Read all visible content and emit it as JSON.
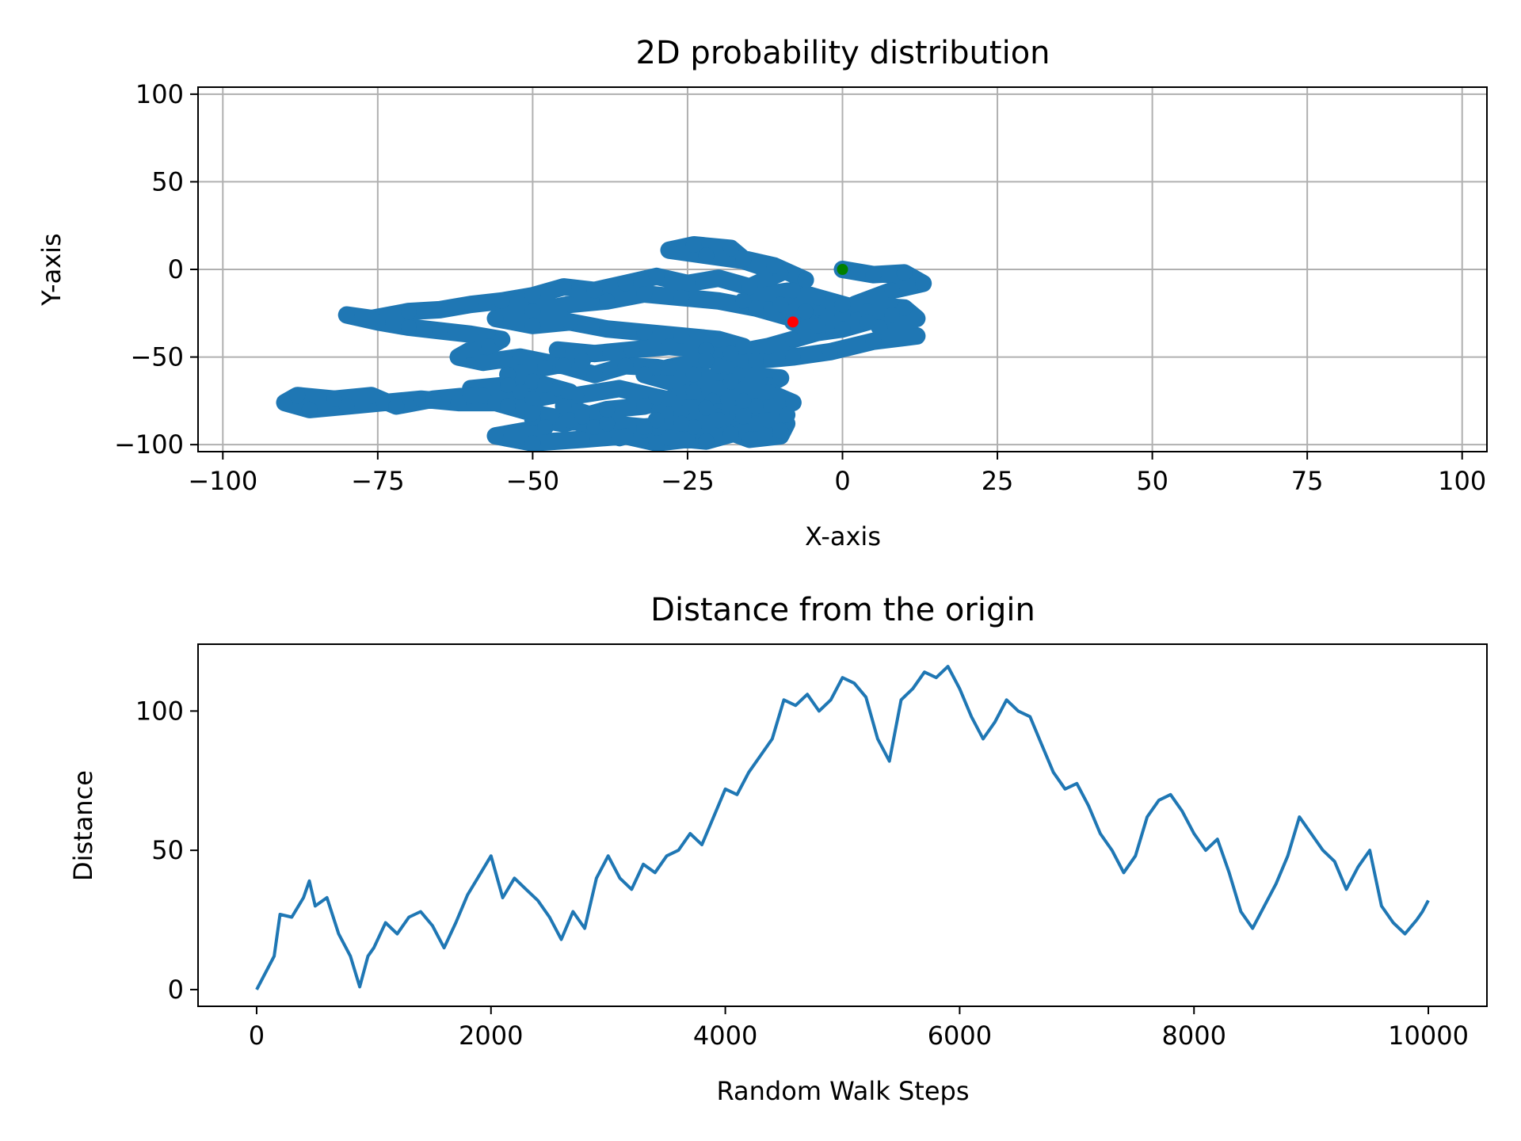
{
  "chart_data": [
    {
      "type": "scatter",
      "title": "2D probability distribution",
      "xlabel": "X-axis",
      "ylabel": "Y-axis",
      "xlim": [
        -104,
        104
      ],
      "ylim": [
        -104,
        104
      ],
      "xticks": [
        -100,
        -75,
        -50,
        -25,
        0,
        25,
        50,
        75,
        100
      ],
      "yticks": [
        -100,
        -50,
        0,
        50,
        100
      ],
      "xtick_labels": [
        "−100",
        "−75",
        "−50",
        "−25",
        "0",
        "25",
        "50",
        "75",
        "100"
      ],
      "ytick_labels": [
        "−100",
        "−50",
        "0",
        "50",
        "100"
      ],
      "grid": true,
      "walk_color": "#1f77b4",
      "walk_path": [
        [
          0,
          0
        ],
        [
          5,
          -3
        ],
        [
          10,
          -2
        ],
        [
          13,
          -8
        ],
        [
          8,
          -12
        ],
        [
          2,
          -20
        ],
        [
          10,
          -22
        ],
        [
          12,
          -28
        ],
        [
          6,
          -33
        ],
        [
          12,
          -38
        ],
        [
          5,
          -41
        ],
        [
          -2,
          -47
        ],
        [
          -8,
          -50
        ],
        [
          -14,
          -52
        ],
        [
          -20,
          -55
        ],
        [
          -17,
          -60
        ],
        [
          -10,
          -62
        ],
        [
          -12,
          -66
        ],
        [
          -20,
          -68
        ],
        [
          -25,
          -70
        ],
        [
          -21,
          -75
        ],
        [
          -14,
          -78
        ],
        [
          -17,
          -82
        ],
        [
          -22,
          -79
        ],
        [
          -30,
          -73
        ],
        [
          -36,
          -68
        ],
        [
          -43,
          -72
        ],
        [
          -45,
          -78
        ],
        [
          -40,
          -84
        ],
        [
          -45,
          -88
        ],
        [
          -50,
          -85
        ],
        [
          -48,
          -90
        ],
        [
          -56,
          -95
        ],
        [
          -50,
          -99
        ],
        [
          -42,
          -97
        ],
        [
          -35,
          -95
        ],
        [
          -30,
          -99
        ],
        [
          -25,
          -97
        ],
        [
          -18,
          -93
        ],
        [
          -15,
          -97
        ],
        [
          -10,
          -95
        ],
        [
          -9,
          -88
        ],
        [
          -14,
          -86
        ],
        [
          -9,
          -83
        ],
        [
          -14,
          -78
        ],
        [
          -20,
          -81
        ],
        [
          -16,
          -75
        ],
        [
          -8,
          -76
        ],
        [
          -12,
          -70
        ],
        [
          -18,
          -64
        ],
        [
          -24,
          -60
        ],
        [
          -30,
          -56
        ],
        [
          -35,
          -55
        ],
        [
          -40,
          -60
        ],
        [
          -45,
          -55
        ],
        [
          -52,
          -50
        ],
        [
          -58,
          -53
        ],
        [
          -62,
          -50
        ],
        [
          -60,
          -46
        ],
        [
          -57,
          -44
        ],
        [
          -55,
          -40
        ],
        [
          -60,
          -37
        ],
        [
          -65,
          -35
        ],
        [
          -70,
          -33
        ],
        [
          -75,
          -30
        ],
        [
          -80,
          -26
        ],
        [
          -76,
          -28
        ],
        [
          -70,
          -24
        ],
        [
          -65,
          -23
        ],
        [
          -60,
          -20
        ],
        [
          -55,
          -18
        ],
        [
          -50,
          -15
        ],
        [
          -45,
          -10
        ],
        [
          -40,
          -12
        ],
        [
          -35,
          -8
        ],
        [
          -30,
          -4
        ],
        [
          -25,
          -8
        ],
        [
          -20,
          -5
        ],
        [
          -15,
          -10
        ],
        [
          -10,
          -2
        ],
        [
          -16,
          5
        ],
        [
          -22,
          8
        ],
        [
          -28,
          11
        ],
        [
          -24,
          14
        ],
        [
          -18,
          12
        ],
        [
          -16,
          6
        ],
        [
          -11,
          2
        ],
        [
          -6,
          -6
        ],
        [
          -9,
          -16
        ],
        [
          -4,
          -22
        ],
        [
          -8,
          -28
        ],
        [
          -14,
          -22
        ],
        [
          -20,
          -18
        ],
        [
          -26,
          -16
        ],
        [
          -32,
          -14
        ],
        [
          -38,
          -18
        ],
        [
          -44,
          -20
        ],
        [
          -50,
          -24
        ],
        [
          -56,
          -28
        ],
        [
          -50,
          -32
        ],
        [
          -44,
          -30
        ],
        [
          -38,
          -34
        ],
        [
          -32,
          -36
        ],
        [
          -26,
          -38
        ],
        [
          -20,
          -40
        ],
        [
          -16,
          -44
        ],
        [
          -22,
          -46
        ],
        [
          -28,
          -44
        ],
        [
          -34,
          -46
        ],
        [
          -40,
          -48
        ],
        [
          -46,
          -46
        ],
        [
          -42,
          -52
        ],
        [
          -48,
          -56
        ],
        [
          -54,
          -60
        ],
        [
          -50,
          -64
        ],
        [
          -46,
          -68
        ],
        [
          -54,
          -66
        ],
        [
          -60,
          -68
        ],
        [
          -58,
          -72
        ],
        [
          -52,
          -70
        ],
        [
          -48,
          -66
        ],
        [
          -44,
          -70
        ],
        [
          -50,
          -74
        ],
        [
          -56,
          -76
        ],
        [
          -62,
          -76
        ],
        [
          -68,
          -74
        ],
        [
          -74,
          -76
        ],
        [
          -80,
          -78
        ],
        [
          -86,
          -80
        ],
        [
          -90,
          -76
        ],
        [
          -88,
          -72
        ],
        [
          -82,
          -74
        ],
        [
          -76,
          -72
        ],
        [
          -72,
          -78
        ],
        [
          -66,
          -74
        ],
        [
          -60,
          -72
        ],
        [
          -54,
          -78
        ],
        [
          -50,
          -82
        ],
        [
          -44,
          -86
        ],
        [
          -40,
          -90
        ],
        [
          -36,
          -96
        ],
        [
          -32,
          -92
        ],
        [
          -28,
          -96
        ],
        [
          -22,
          -98
        ],
        [
          -18,
          -94
        ],
        [
          -24,
          -90
        ],
        [
          -30,
          -86
        ],
        [
          -26,
          -82
        ],
        [
          -20,
          -84
        ],
        [
          -14,
          -88
        ],
        [
          -10,
          -92
        ],
        [
          -12,
          -86
        ],
        [
          -16,
          -84
        ],
        [
          -20,
          -86
        ],
        [
          -26,
          -88
        ],
        [
          -32,
          -90
        ],
        [
          -38,
          -88
        ],
        [
          -42,
          -84
        ],
        [
          -38,
          -80
        ],
        [
          -32,
          -78
        ],
        [
          -28,
          -74
        ],
        [
          -24,
          -70
        ],
        [
          -28,
          -64
        ],
        [
          -32,
          -60
        ],
        [
          -28,
          -56
        ],
        [
          -22,
          -52
        ],
        [
          -18,
          -48
        ],
        [
          -12,
          -44
        ],
        [
          -8,
          -40
        ],
        [
          -4,
          -36
        ],
        [
          0,
          -34
        ],
        [
          4,
          -30
        ],
        [
          0,
          -26
        ],
        [
          -6,
          -24
        ],
        [
          -10,
          -20
        ],
        [
          -16,
          -18
        ],
        [
          -12,
          -14
        ],
        [
          -8,
          -12
        ],
        [
          -4,
          -16
        ],
        [
          0,
          -20
        ],
        [
          4,
          -24
        ],
        [
          8,
          -26
        ],
        [
          4,
          -30
        ],
        [
          0,
          -34
        ],
        [
          -4,
          -32
        ],
        [
          -8,
          -30
        ]
      ],
      "start_point": {
        "x": 0,
        "y": 0,
        "color": "#008000"
      },
      "end_point": {
        "x": -8,
        "y": -30,
        "color": "#ff0000"
      }
    },
    {
      "type": "line",
      "title": "Distance from the origin",
      "xlabel": "Random Walk Steps",
      "ylabel": "Distance",
      "xlim": [
        -500,
        10500
      ],
      "ylim": [
        -6,
        124
      ],
      "xticks": [
        0,
        2000,
        4000,
        6000,
        8000,
        10000
      ],
      "yticks": [
        0,
        50,
        100
      ],
      "xtick_labels": [
        "0",
        "2000",
        "4000",
        "6000",
        "8000",
        "10000"
      ],
      "ytick_labels": [
        "0",
        "50",
        "100"
      ],
      "grid": false,
      "line_color": "#1f77b4",
      "series": [
        {
          "x": [
            0,
            100,
            150,
            200,
            300,
            400,
            450,
            500,
            600,
            700,
            800,
            880,
            950,
            1000,
            1100,
            1200,
            1300,
            1400,
            1500,
            1600,
            1700,
            1800,
            1900,
            2000,
            2100,
            2200,
            2300,
            2400,
            2500,
            2600,
            2700,
            2800,
            2900,
            3000,
            3100,
            3200,
            3300,
            3400,
            3500,
            3600,
            3700,
            3800,
            3900,
            4000,
            4100,
            4200,
            4300,
            4400,
            4500,
            4600,
            4700,
            4800,
            4900,
            5000,
            5100,
            5200,
            5300,
            5400,
            5500,
            5600,
            5700,
            5800,
            5900,
            6000,
            6100,
            6200,
            6300,
            6400,
            6500,
            6600,
            6700,
            6800,
            6900,
            7000,
            7100,
            7200,
            7300,
            7400,
            7500,
            7600,
            7700,
            7800,
            7900,
            8000,
            8100,
            8200,
            8300,
            8400,
            8500,
            8600,
            8700,
            8800,
            8900,
            9000,
            9100,
            9200,
            9300,
            9400,
            9500,
            9600,
            9700,
            9800,
            9900,
            9950,
            10000
          ],
          "values": [
            0,
            8,
            12,
            27,
            26,
            33,
            39,
            30,
            33,
            20,
            12,
            1,
            12,
            15,
            24,
            20,
            26,
            28,
            23,
            15,
            24,
            34,
            41,
            48,
            33,
            40,
            36,
            32,
            26,
            18,
            28,
            22,
            40,
            48,
            40,
            36,
            45,
            42,
            48,
            50,
            56,
            52,
            62,
            72,
            70,
            78,
            84,
            90,
            104,
            102,
            106,
            100,
            104,
            112,
            110,
            105,
            90,
            82,
            104,
            108,
            114,
            112,
            116,
            108,
            98,
            90,
            96,
            104,
            100,
            98,
            88,
            78,
            72,
            74,
            66,
            56,
            50,
            42,
            48,
            62,
            68,
            70,
            64,
            56,
            50,
            54,
            42,
            28,
            22,
            30,
            38,
            48,
            62,
            56,
            50,
            46,
            36,
            44,
            50,
            30,
            24,
            20,
            25,
            28,
            32
          ]
        }
      ]
    }
  ]
}
